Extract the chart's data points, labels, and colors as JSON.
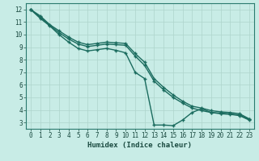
{
  "xlabel": "Humidex (Indice chaleur)",
  "bg_color": "#c8ece6",
  "grid_color": "#b0d8d0",
  "line_color": "#1a6b5e",
  "xlim": [
    -0.5,
    23.5
  ],
  "ylim": [
    2.5,
    12.5
  ],
  "xtick_labels": [
    "0",
    "1",
    "2",
    "3",
    "4",
    "5",
    "6",
    "7",
    "8",
    "9",
    "10",
    "11",
    "12",
    "13",
    "14",
    "15",
    "16",
    "17",
    "18",
    "19",
    "20",
    "21",
    "22",
    "23"
  ],
  "ytick_labels": [
    "3",
    "4",
    "5",
    "6",
    "7",
    "8",
    "9",
    "10",
    "11",
    "12"
  ],
  "xtick_vals": [
    0,
    1,
    2,
    3,
    4,
    5,
    6,
    7,
    8,
    9,
    10,
    11,
    12,
    13,
    14,
    15,
    16,
    17,
    18,
    19,
    20,
    21,
    22,
    23
  ],
  "ytick_vals": [
    3,
    4,
    5,
    6,
    7,
    8,
    9,
    10,
    11,
    12
  ],
  "line1_x": [
    0,
    1,
    2,
    3,
    4,
    5,
    6,
    7,
    8,
    9,
    10,
    11,
    12,
    13,
    14,
    15,
    16,
    17,
    18,
    19,
    20,
    21,
    22,
    23
  ],
  "line1_y": [
    12.0,
    11.5,
    10.8,
    10.3,
    9.8,
    9.4,
    9.2,
    9.3,
    9.4,
    9.35,
    9.3,
    8.5,
    7.8,
    6.5,
    5.8,
    5.2,
    4.7,
    4.3,
    4.15,
    3.95,
    3.85,
    3.8,
    3.7,
    3.3
  ],
  "line2_x": [
    0,
    1,
    2,
    3,
    4,
    5,
    6,
    7,
    8,
    9,
    10,
    11,
    12,
    13,
    14,
    15,
    16,
    17,
    18,
    19,
    20,
    21,
    22,
    23
  ],
  "line2_y": [
    12.0,
    11.4,
    10.75,
    10.15,
    9.65,
    9.25,
    9.05,
    9.15,
    9.25,
    9.2,
    9.15,
    8.3,
    7.55,
    6.3,
    5.6,
    5.0,
    4.55,
    4.15,
    3.95,
    3.8,
    3.7,
    3.65,
    3.55,
    3.2
  ],
  "line3_x": [
    0,
    1,
    2,
    3,
    4,
    5,
    6,
    7,
    8,
    9,
    10,
    11,
    12,
    13,
    14,
    15,
    16,
    17,
    18,
    19,
    20,
    21,
    22,
    23
  ],
  "line3_y": [
    12.0,
    11.3,
    10.7,
    10.0,
    9.4,
    8.9,
    8.7,
    8.8,
    8.9,
    8.75,
    8.55,
    7.0,
    6.5,
    2.8,
    2.8,
    2.75,
    3.2,
    3.8,
    4.1,
    3.8,
    3.75,
    3.7,
    3.6,
    3.25
  ]
}
